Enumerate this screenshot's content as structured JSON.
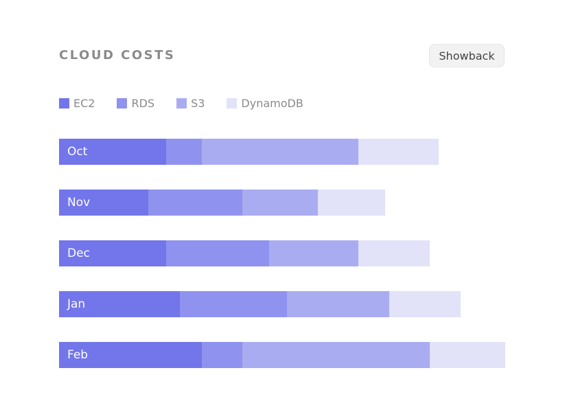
{
  "header": {
    "title": "CLOUD COSTS",
    "button_label": "Showback"
  },
  "chart_data": {
    "type": "bar",
    "orientation": "horizontal",
    "stacked": true,
    "title": "CLOUD COSTS",
    "categories": [
      "Oct",
      "Nov",
      "Dec",
      "Jan",
      "Feb"
    ],
    "series": [
      {
        "name": "EC2",
        "color": "#7375ea",
        "values": [
          24,
          20,
          24,
          27,
          32
        ]
      },
      {
        "name": "RDS",
        "color": "#8f92ee",
        "values": [
          8,
          21,
          23,
          24,
          9
        ]
      },
      {
        "name": "S3",
        "color": "#aaacf2",
        "values": [
          35,
          17,
          20,
          23,
          42
        ]
      },
      {
        "name": "DynamoDB",
        "color": "#e2e2f9",
        "values": [
          18,
          15,
          16,
          16,
          17
        ]
      }
    ],
    "xlim": [
      0,
      100
    ],
    "grid": false,
    "legend": "top-left"
  }
}
